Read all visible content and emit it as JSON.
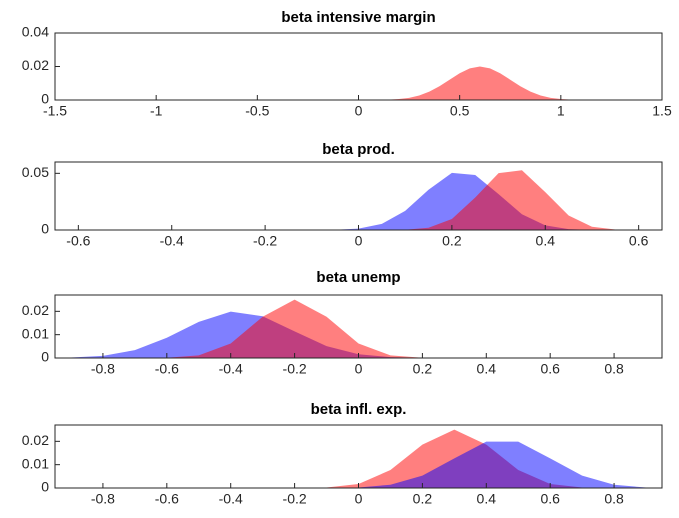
{
  "chart_data": [
    {
      "type": "area",
      "title": "beta intensive margin",
      "x": [
        0.1,
        0.15,
        0.2,
        0.25,
        0.3,
        0.35,
        0.4,
        0.45,
        0.5,
        0.55,
        0.6,
        0.65,
        0.7,
        0.75,
        0.8,
        0.85,
        0.9,
        0.95,
        1,
        1.05
      ],
      "series": [
        {
          "color": "#ff0000",
          "values": [
            0.0001,
            0.0002,
            0.0006,
            0.0013,
            0.0027,
            0.005,
            0.0082,
            0.0121,
            0.016,
            0.0189,
            0.02,
            0.0189,
            0.016,
            0.0121,
            0.0082,
            0.005,
            0.0027,
            0.0013,
            0.0006,
            0.0002
          ]
        }
      ],
      "xlim": [
        -1.5,
        1.5
      ],
      "xticks": [
        -1.5,
        -1,
        -0.5,
        0,
        0.5,
        1,
        1.5
      ],
      "ylim": [
        0,
        0.04
      ],
      "yticks": [
        0,
        0.02,
        0.04
      ]
    },
    {
      "type": "area",
      "title": "beta prod.",
      "x": [
        -0.05,
        0,
        0.05,
        0.1,
        0.15,
        0.2,
        0.25,
        0.3,
        0.35,
        0.4,
        0.45,
        0.5,
        0.55
      ],
      "series": [
        {
          "color": "#0000ff",
          "values": [
            0.0002,
            0.0012,
            0.0054,
            0.0169,
            0.0355,
            0.0504,
            0.0485,
            0.0316,
            0.0139,
            0.0041,
            0.0008,
            0.0001,
            0
          ]
        },
        {
          "color": "#ff0000",
          "values": [
            0,
            0,
            0,
            0.0002,
            0.002,
            0.0097,
            0.0287,
            0.0502,
            0.0527,
            0.0334,
            0.0128,
            0.0029,
            0.0004
          ]
        }
      ],
      "xlim": [
        -0.65,
        0.65
      ],
      "xticks": [
        -0.6,
        -0.4,
        -0.2,
        0,
        0.2,
        0.4,
        0.6
      ],
      "ylim": [
        0,
        0.06
      ],
      "yticks": [
        0,
        0.05
      ]
    },
    {
      "type": "area",
      "title": "beta unemp",
      "x": [
        -0.9,
        -0.8,
        -0.7,
        -0.6,
        -0.5,
        -0.4,
        -0.3,
        -0.2,
        -0.1,
        0,
        0.1,
        0.2,
        0.3,
        0.4
      ],
      "series": [
        {
          "color": "#0000ff",
          "values": [
            0.0002,
            0.0009,
            0.0034,
            0.0087,
            0.0155,
            0.0199,
            0.0179,
            0.0114,
            0.0051,
            0.0016,
            0.0004,
            0.0001,
            0,
            0
          ]
        },
        {
          "color": "#ff0000",
          "values": [
            0,
            0,
            0,
            0.0001,
            0.0011,
            0.0062,
            0.0177,
            0.025,
            0.0177,
            0.0062,
            0.0011,
            0.0001,
            0,
            0
          ]
        }
      ],
      "xlim": [
        -0.95,
        0.95
      ],
      "xticks": [
        -0.8,
        -0.6,
        -0.4,
        -0.2,
        0,
        0.2,
        0.4,
        0.6,
        0.8
      ],
      "ylim": [
        0,
        0.027
      ],
      "yticks": [
        0,
        0.01,
        0.02
      ]
    },
    {
      "type": "area",
      "title": "beta infl. exp.",
      "x": [
        -0.2,
        -0.1,
        0,
        0.1,
        0.2,
        0.3,
        0.4,
        0.5,
        0.6,
        0.7,
        0.8,
        0.9
      ],
      "series": [
        {
          "color": "#ff0000",
          "values": [
            0,
            0.0002,
            0.0017,
            0.0077,
            0.0186,
            0.025,
            0.0186,
            0.0077,
            0.0017,
            0.0002,
            0,
            0
          ]
        },
        {
          "color": "#0000ff",
          "values": [
            0,
            0,
            0.0002,
            0.0014,
            0.0053,
            0.0127,
            0.0199,
            0.0199,
            0.0127,
            0.0053,
            0.0014,
            0.0002
          ]
        }
      ],
      "xlim": [
        -0.95,
        0.95
      ],
      "xticks": [
        -0.8,
        -0.6,
        -0.4,
        -0.2,
        0,
        0.2,
        0.4,
        0.6,
        0.8
      ],
      "ylim": [
        0,
        0.027
      ],
      "yticks": [
        0,
        0.01,
        0.02
      ]
    }
  ]
}
